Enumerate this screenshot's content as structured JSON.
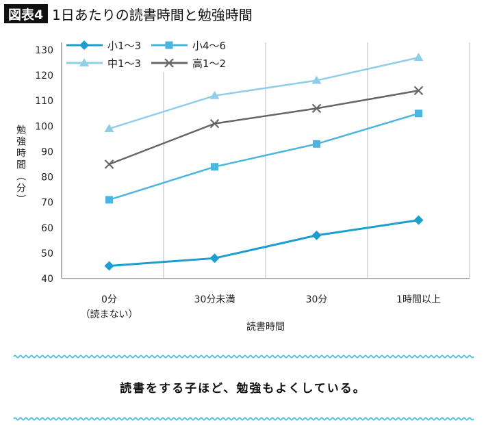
{
  "header": {
    "badge": "図表4",
    "title": "1日あたりの読書時間と勉強時間"
  },
  "message": "読書をする子ほど、勉強もよくしている。",
  "colors": {
    "wave": "#5bc0de"
  },
  "chart_data": {
    "type": "line",
    "xlabel": "読書時間",
    "ylabel": "勉強時間（分）",
    "categories": [
      "0分\n（読まない）",
      "30分未満",
      "30分",
      "1時間以上"
    ],
    "ylim": [
      40,
      130
    ],
    "yticks": [
      40,
      50,
      60,
      70,
      80,
      90,
      100,
      110,
      120,
      130
    ],
    "legend_placement": "top-left",
    "series": [
      {
        "name": "小1～3",
        "values": [
          45,
          48,
          57,
          63
        ],
        "color": "#1a9fcf",
        "marker": "diamond"
      },
      {
        "name": "小4～6",
        "values": [
          71,
          84,
          93,
          105
        ],
        "color": "#4ab6e0",
        "marker": "square"
      },
      {
        "name": "中1～3",
        "values": [
          99,
          112,
          118,
          127
        ],
        "color": "#8fcde8",
        "marker": "triangle"
      },
      {
        "name": "高1～2",
        "values": [
          85,
          101,
          107,
          114
        ],
        "color": "#666666",
        "marker": "x"
      }
    ]
  }
}
